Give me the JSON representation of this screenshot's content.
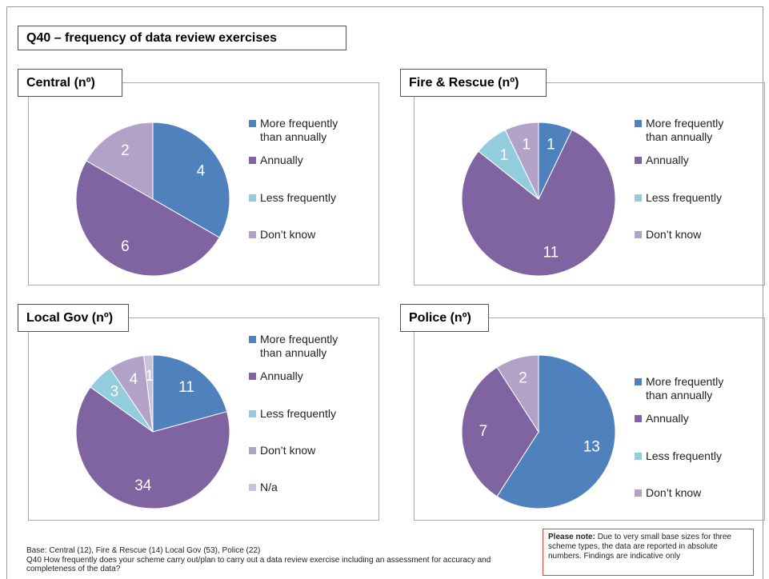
{
  "title": "Q40 – frequency of data review exercises",
  "chart_data": [
    {
      "type": "pie",
      "title": "Central (nº)",
      "categories": [
        "More frequently than annually",
        "Annually",
        "Less frequently",
        "Don’t know"
      ],
      "values": [
        4,
        6,
        0,
        2
      ],
      "colors": [
        "#4f81bd",
        "#8064a2",
        "#93cddd",
        "#b3a2c7"
      ]
    },
    {
      "type": "pie",
      "title": "Fire & Rescue (nº)",
      "categories": [
        "More frequently than annually",
        "Annually",
        "Less frequently",
        "Don’t know"
      ],
      "values": [
        1,
        11,
        1,
        1
      ],
      "colors": [
        "#4f81bd",
        "#8064a2",
        "#93cddd",
        "#b3a2c7"
      ]
    },
    {
      "type": "pie",
      "title": "Local Gov (nº)",
      "categories": [
        "More frequently than annually",
        "Annually",
        "Less frequently",
        "Don’t know",
        "N/a"
      ],
      "values": [
        11,
        34,
        3,
        4,
        1
      ],
      "colors": [
        "#4f81bd",
        "#8064a2",
        "#93cddd",
        "#b3a2c7",
        "#ccc0da"
      ]
    },
    {
      "type": "pie",
      "title": "Police (nº)",
      "categories": [
        "More frequently than annually",
        "Annually",
        "Less frequently",
        "Don’t know"
      ],
      "values": [
        13,
        7,
        0,
        2
      ],
      "colors": [
        "#4f81bd",
        "#8064a2",
        "#93cddd",
        "#b3a2c7"
      ]
    }
  ],
  "footnotes": [
    "Base: Central (12), Fire & Rescue (14) Local Gov (53), Police (22)",
    "Q40 How frequently does your scheme carry out/plan to carry out a data review exercise including an assessment for accuracy and completeness of the data?"
  ],
  "note": {
    "label": "Please note:",
    "text": "Due to very small base sizes  for three scheme types, the data are reported in absolute numbers.  Findings are indicative only"
  }
}
